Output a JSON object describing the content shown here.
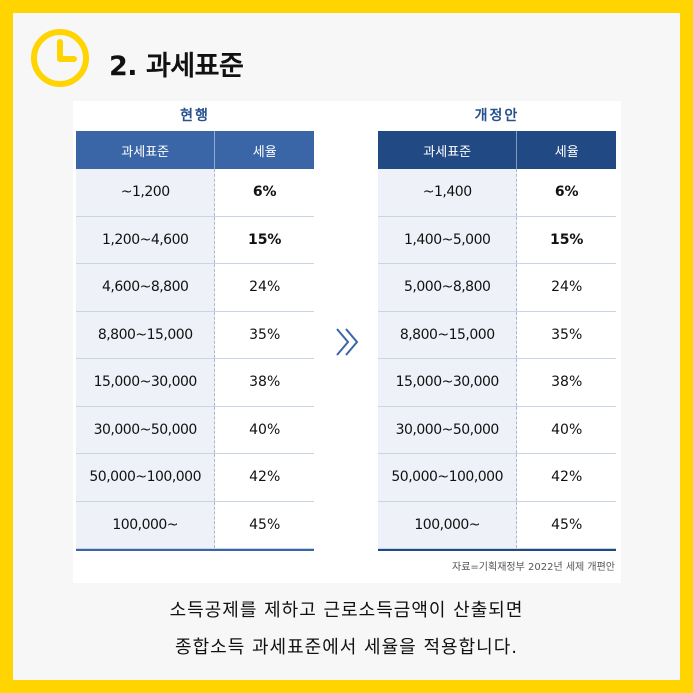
{
  "title": "2. 과세표준",
  "current": {
    "caption": "현행",
    "headers": {
      "bracket": "과세표준",
      "rate": "세율"
    },
    "rows": [
      {
        "bracket": "~1,200",
        "rate": "6%"
      },
      {
        "bracket": "1,200~4,600",
        "rate": "15%"
      },
      {
        "bracket": "4,600~8,800",
        "rate": "24%"
      },
      {
        "bracket": "8,800~15,000",
        "rate": "35%"
      },
      {
        "bracket": "15,000~30,000",
        "rate": "38%"
      },
      {
        "bracket": "30,000~50,000",
        "rate": "40%"
      },
      {
        "bracket": "50,000~100,000",
        "rate": "42%"
      },
      {
        "bracket": "100,000~",
        "rate": "45%"
      }
    ]
  },
  "revised": {
    "caption": "개정안",
    "headers": {
      "bracket": "과세표준",
      "rate": "세율"
    },
    "rows": [
      {
        "bracket": "~1,400",
        "rate": "6%"
      },
      {
        "bracket": "1,400~5,000",
        "rate": "15%"
      },
      {
        "bracket": "5,000~8,800",
        "rate": "24%"
      },
      {
        "bracket": "8,800~15,000",
        "rate": "35%"
      },
      {
        "bracket": "15,000~30,000",
        "rate": "38%"
      },
      {
        "bracket": "30,000~50,000",
        "rate": "40%"
      },
      {
        "bracket": "50,000~100,000",
        "rate": "42%"
      },
      {
        "bracket": "100,000~",
        "rate": "45%"
      }
    ]
  },
  "source": "자료=기획재정부 2022년 세제 개편안",
  "description": {
    "line1": "소득공제를 제하고 근로소득금액이 산출되면",
    "line2": "종합소득 과세표준에서 세율을 적용합니다."
  },
  "colors": {
    "border": "#ffd400",
    "clock": "#ffd400",
    "header_current": "#3a66a7",
    "header_revised": "#214a84"
  },
  "icons": {
    "clock": "clock-icon",
    "arrow": "double-chevron-right-icon"
  }
}
